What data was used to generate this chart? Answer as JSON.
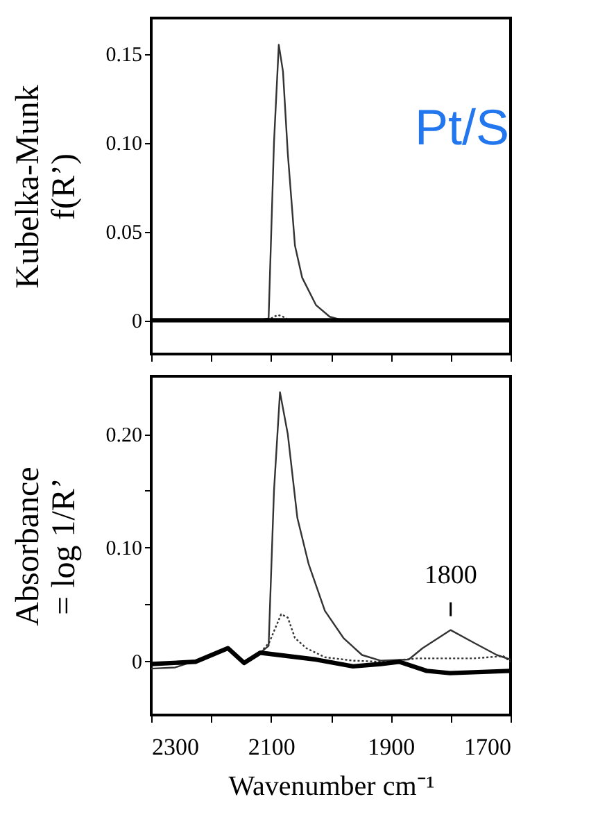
{
  "chart_data": [
    {
      "type": "line",
      "ylabel": "Kubelka-Munk\nf(R’)",
      "xlim": [
        2300,
        1700
      ],
      "xticks": [
        {
          "value": 2300,
          "label": null
        },
        {
          "value": 2200,
          "label": null
        },
        {
          "value": 2100,
          "label": null
        },
        {
          "value": 2000,
          "label": null
        },
        {
          "value": 1900,
          "label": null
        },
        {
          "value": 1800,
          "label": null
        },
        {
          "value": 1700,
          "label": null
        }
      ],
      "ylim": [
        -0.019,
        0.17
      ],
      "yticks": [
        0,
        0.05,
        {
          "value": 0.1,
          "label": "0.10"
        },
        0.15
      ],
      "tick_labels": "y",
      "annotations": [
        "Pt/S"
      ],
      "series": [
        {
          "color": "#333333",
          "line_style": "solid",
          "x": [
            2300,
            2200,
            2120,
            2104,
            2095,
            2087,
            2080,
            2072,
            2060,
            2048,
            2025,
            2002,
            1980,
            1900,
            1800,
            1700
          ],
          "values": [
            0,
            0,
            0,
            0.001,
            0.1,
            0.155,
            0.14,
            0.094,
            0.042,
            0.024,
            0.0086,
            0.002,
            0,
            0,
            0,
            0
          ]
        },
        {
          "color": "#333333",
          "line_style": "dotted",
          "x": [
            2100,
            2095,
            2088,
            2080,
            2074
          ],
          "values": [
            0.001,
            0.002,
            0.003,
            0.002,
            0.001
          ]
        },
        {
          "color": "#000000",
          "line_style": "solid",
          "x": [
            2300,
            2100,
            1900,
            1700
          ],
          "values": [
            0,
            0,
            0,
            0
          ]
        }
      ]
    },
    {
      "type": "line",
      "ylabel": "Absorbance\n= log 1/R’",
      "xlabel": "Wavenumber cm⁻¹",
      "xlim": [
        2300,
        1700
      ],
      "xticks": [
        2300,
        {
          "value": 2200,
          "label": null
        },
        2100,
        {
          "value": 2000,
          "label": null
        },
        1900,
        {
          "value": 1800,
          "label": null
        },
        1700
      ],
      "ylim": [
        -0.048,
        0.251
      ],
      "yticks": [
        0,
        {
          "value": 0.05,
          "label": null
        },
        {
          "value": 0.1,
          "label": "0.10"
        },
        {
          "value": 0.15,
          "label": null
        },
        {
          "value": 0.2,
          "label": "0.20"
        }
      ],
      "annotations": [
        {
          "text": "1800",
          "x": 1800,
          "y": 0.027
        }
      ],
      "series": [
        {
          "color": "#333333",
          "line_style": "solid",
          "x": [
            2300,
            2260,
            2226,
            2172,
            2145,
            2118,
            2104,
            2095,
            2085,
            2072,
            2056,
            2037,
            2010,
            1979,
            1948,
            1917,
            1870,
            1847,
            1800,
            1762,
            1723,
            1700
          ],
          "values": [
            -0.007,
            -0.006,
            0,
            0.011,
            -0.003,
            0.007,
            0.013,
            0.15,
            0.237,
            0.2,
            0.126,
            0.085,
            0.044,
            0.02,
            0.005,
            0,
            0.001,
            0.011,
            0.027,
            0.016,
            0.005,
            0.001
          ]
        },
        {
          "color": "#333333",
          "line_style": "dotted",
          "x": [
            2300,
            2226,
            2172,
            2145,
            2118,
            2103,
            2083,
            2072,
            2060,
            2041,
            2010,
            1963,
            1917,
            1855,
            1762,
            1712,
            1700
          ],
          "values": [
            -0.003,
            0,
            0.011,
            -0.002,
            0.007,
            0.016,
            0.041,
            0.038,
            0.02,
            0.011,
            0.003,
            0,
            -0.001,
            0.002,
            0.002,
            0.004,
            -0.001
          ]
        },
        {
          "color": "#000000",
          "line_style": "solid",
          "x": [
            2300,
            2226,
            2172,
            2145,
            2118,
            2087,
            2025,
            1963,
            1917,
            1886,
            1840,
            1801,
            1700
          ],
          "values": [
            -0.003,
            -0.001,
            0.011,
            -0.002,
            0.007,
            0.005,
            0.001,
            -0.005,
            -0.003,
            -0.001,
            -0.009,
            -0.011,
            -0.009
          ]
        }
      ]
    }
  ]
}
